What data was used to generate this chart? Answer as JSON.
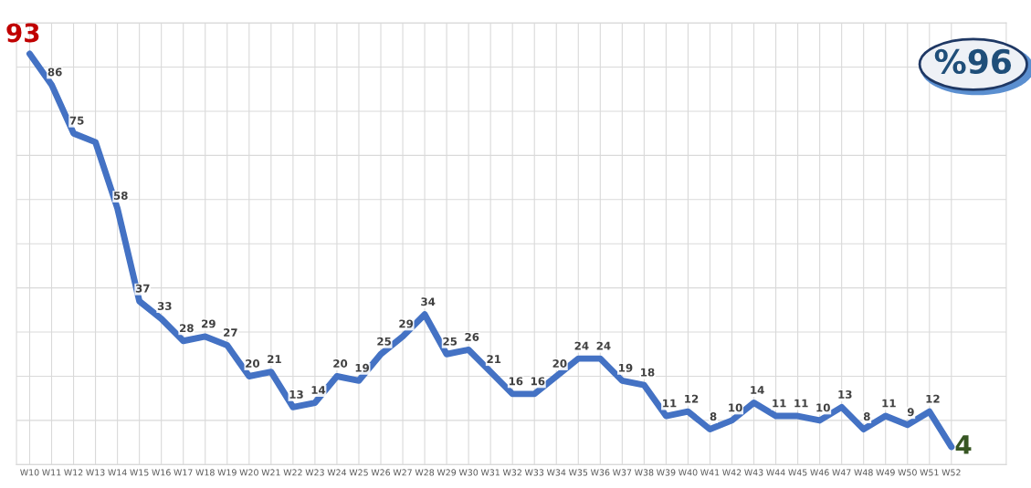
{
  "chart_data": {
    "type": "line",
    "categories": [
      "W10",
      "W11",
      "W12",
      "W13",
      "W14",
      "W15",
      "W16",
      "W17",
      "W18",
      "W19",
      "W20",
      "W21",
      "W22",
      "W23",
      "W24",
      "W25",
      "W26",
      "W27",
      "W28",
      "W29",
      "W30",
      "W31",
      "W32",
      "W33",
      "W34",
      "W35",
      "W36",
      "W37",
      "W38",
      "W39",
      "W40",
      "W41",
      "W42",
      "W43",
      "W44",
      "W45",
      "W46",
      "W47",
      "W48",
      "W49",
      "W50",
      "W51",
      "W52"
    ],
    "series": [
      {
        "color": "#4472c4",
        "values": [
          93,
          86,
          75,
          73,
          58,
          37,
          33,
          28,
          29,
          27,
          20,
          21,
          13,
          14,
          20,
          19,
          25,
          29,
          34,
          25,
          26,
          21,
          16,
          16,
          20,
          24,
          24,
          19,
          18,
          11,
          12,
          8,
          10,
          14,
          11,
          11,
          10,
          13,
          8,
          11,
          9,
          12,
          4
        ],
        "value_labels": [
          "93",
          "86",
          "75",
          null,
          "58",
          "37",
          "33",
          "28",
          "29",
          "27",
          "20",
          "21",
          "13",
          "14",
          "20",
          "19",
          "25",
          "29",
          "34",
          "25",
          "26",
          "21",
          "16",
          "16",
          "20",
          "24",
          "24",
          "19",
          "18",
          "11",
          "12",
          "8",
          "10",
          "14",
          "11",
          "11",
          "10",
          "13",
          "8",
          "11",
          "9",
          "12",
          "4"
        ]
      }
    ],
    "ylim": [
      0,
      100
    ],
    "yticks": [
      {
        "value": 0,
        "label": null
      },
      {
        "value": 10,
        "label": null
      },
      {
        "value": 20,
        "label": null
      },
      {
        "value": 30,
        "label": null
      },
      {
        "value": 40,
        "label": null
      },
      {
        "value": 50,
        "label": null
      },
      {
        "value": 60,
        "label": null
      },
      {
        "value": 70,
        "label": null
      },
      {
        "value": 80,
        "label": null
      },
      {
        "value": 90,
        "label": null
      },
      {
        "value": 100,
        "label": null
      }
    ],
    "tick_labels": "x",
    "grid": true,
    "marker": "none",
    "line_style": "solid",
    "annotations": [
      "%96"
    ]
  }
}
